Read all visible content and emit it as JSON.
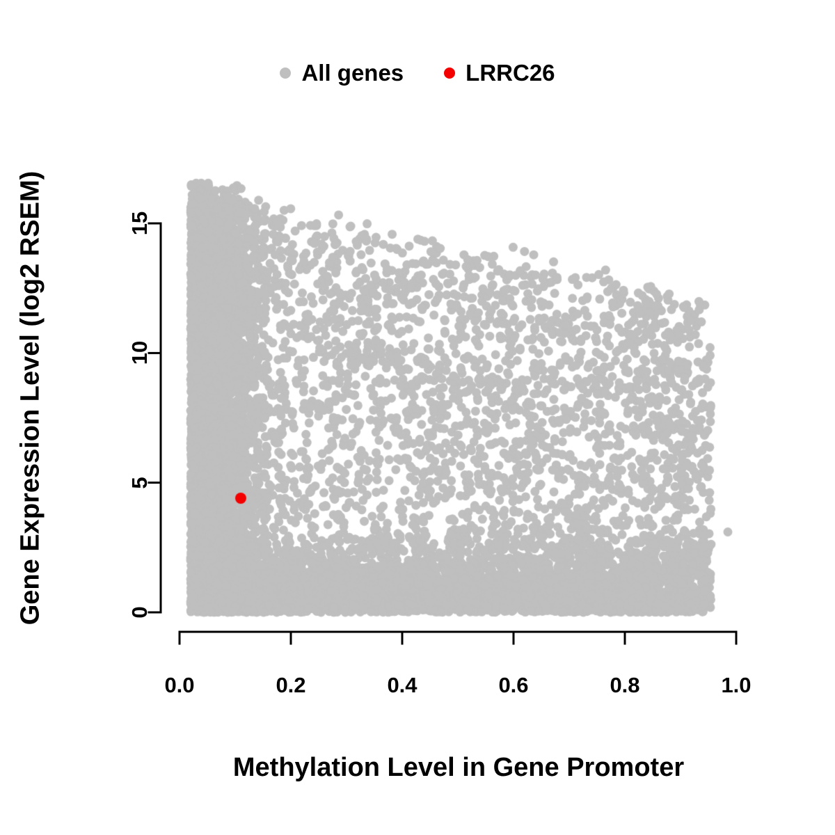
{
  "chart_data": {
    "type": "scatter",
    "title": "",
    "xlabel": "Methylation Level in Gene Promoter",
    "ylabel": "Gene Expression Level (log2 RSEM)",
    "xlim": [
      0,
      1
    ],
    "ylim": [
      0,
      16.6
    ],
    "x_tick_values": [
      0,
      0.2,
      0.4,
      0.6,
      0.8,
      1.0
    ],
    "x_tick_labels": [
      "0.0",
      "0.2",
      "0.4",
      "0.6",
      "0.8",
      "1.0"
    ],
    "y_tick_values": [
      0,
      5,
      10,
      15
    ],
    "y_tick_labels": [
      "0",
      "5",
      "10",
      "15"
    ],
    "grid": false,
    "legend_position": "top-center",
    "background_color": "#ffffff",
    "axis_color": "#000000",
    "series": [
      {
        "name": "All genes",
        "color": "#bfbfbf",
        "marker": "filled-circle",
        "representation": "procedural-cloud",
        "point_count": 11000,
        "seed": 42,
        "x_range": [
          0.015,
          0.955
        ],
        "y_range": [
          0,
          16.55
        ],
        "upper_envelope": {
          "y_at_x0": 16.35,
          "slope": -4.6
        },
        "density_profile": "densest at low methylation across all expression levels and along zero expression for all methylation; upper expression bound declines as methylation rises",
        "outliers": [
          [
            0.985,
            3.1
          ]
        ]
      },
      {
        "name": "LRRC26",
        "color": "#f40000",
        "marker": "filled-circle",
        "points": [
          [
            0.11,
            4.4
          ]
        ]
      }
    ]
  }
}
